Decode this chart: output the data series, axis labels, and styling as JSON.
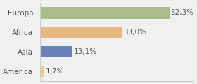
{
  "categories": [
    "Europa",
    "Africa",
    "Asia",
    "America"
  ],
  "values": [
    52.3,
    33.0,
    13.1,
    1.7
  ],
  "labels": [
    "52,3%",
    "33,0%",
    "13,1%",
    "1,7%"
  ],
  "bar_colors": [
    "#a8bd8a",
    "#e8b882",
    "#6a82b8",
    "#e8d07a"
  ],
  "background_color": "#f0f0f0",
  "xlim": [
    0,
    62
  ],
  "label_fontsize": 7.5,
  "cat_fontsize": 7.5
}
